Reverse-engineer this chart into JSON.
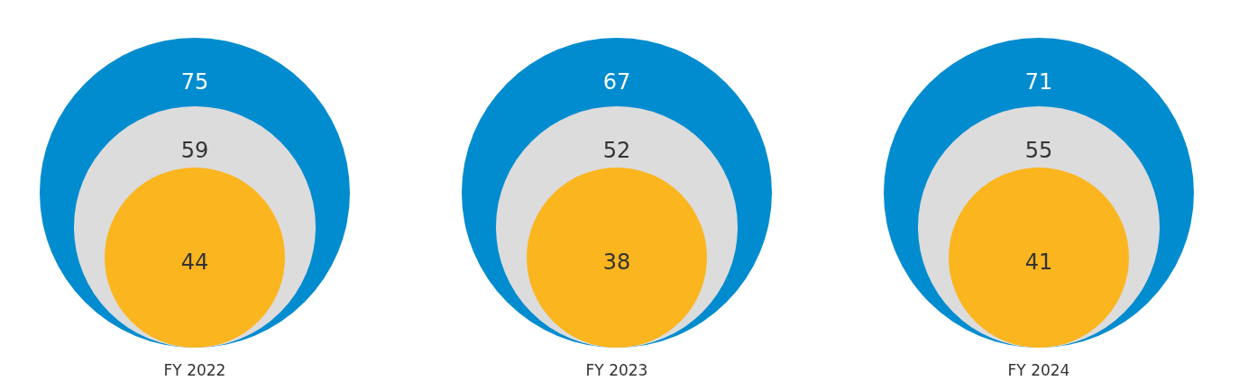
{
  "chart_data": {
    "type": "other",
    "categories": [
      "FY 2022",
      "FY 2023",
      "FY 2024"
    ],
    "series": [
      {
        "color": "#008ccf",
        "values": [
          75,
          67,
          71
        ]
      },
      {
        "color": "#dcdcdc",
        "values": [
          59,
          52,
          55
        ]
      },
      {
        "color": "#fbb51e",
        "values": [
          44,
          38,
          41
        ]
      }
    ],
    "data_labels": true
  }
}
